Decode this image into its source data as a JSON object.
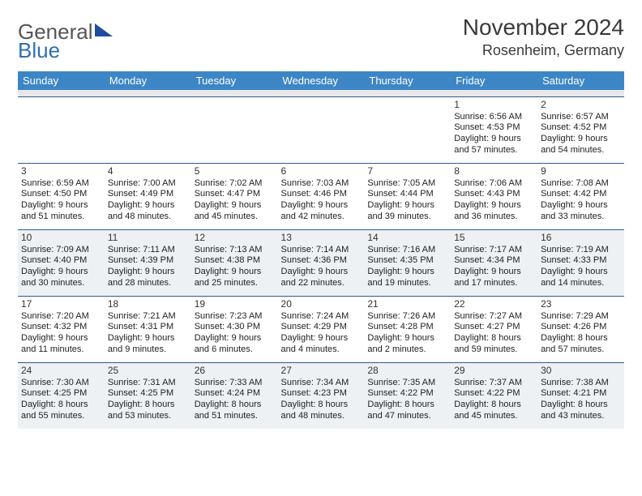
{
  "brand": {
    "part1": "General",
    "part2": "Blue"
  },
  "title": "November 2024",
  "location": "Rosenheim, Germany",
  "colors": {
    "header_bg": "#3d86c6",
    "header_text": "#ffffff",
    "row_rule": "#2b5b93",
    "alt_bg": "#eef1f3",
    "spacer_bg": "#e8e8ea",
    "text": "#222222",
    "title_text": "#3a3a3a"
  },
  "layout": {
    "columns": 7,
    "rows": 5,
    "cell_font_pt": 8,
    "title_font_pt": 21
  },
  "dow": [
    "Sunday",
    "Monday",
    "Tuesday",
    "Wednesday",
    "Thursday",
    "Friday",
    "Saturday"
  ],
  "weeks": [
    [
      null,
      null,
      null,
      null,
      null,
      {
        "n": "1",
        "sr": "6:56 AM",
        "ss": "4:53 PM",
        "dl": "9 hours and 57 minutes."
      },
      {
        "n": "2",
        "sr": "6:57 AM",
        "ss": "4:52 PM",
        "dl": "9 hours and 54 minutes."
      }
    ],
    [
      {
        "n": "3",
        "sr": "6:59 AM",
        "ss": "4:50 PM",
        "dl": "9 hours and 51 minutes."
      },
      {
        "n": "4",
        "sr": "7:00 AM",
        "ss": "4:49 PM",
        "dl": "9 hours and 48 minutes."
      },
      {
        "n": "5",
        "sr": "7:02 AM",
        "ss": "4:47 PM",
        "dl": "9 hours and 45 minutes."
      },
      {
        "n": "6",
        "sr": "7:03 AM",
        "ss": "4:46 PM",
        "dl": "9 hours and 42 minutes."
      },
      {
        "n": "7",
        "sr": "7:05 AM",
        "ss": "4:44 PM",
        "dl": "9 hours and 39 minutes."
      },
      {
        "n": "8",
        "sr": "7:06 AM",
        "ss": "4:43 PM",
        "dl": "9 hours and 36 minutes."
      },
      {
        "n": "9",
        "sr": "7:08 AM",
        "ss": "4:42 PM",
        "dl": "9 hours and 33 minutes."
      }
    ],
    [
      {
        "n": "10",
        "sr": "7:09 AM",
        "ss": "4:40 PM",
        "dl": "9 hours and 30 minutes."
      },
      {
        "n": "11",
        "sr": "7:11 AM",
        "ss": "4:39 PM",
        "dl": "9 hours and 28 minutes."
      },
      {
        "n": "12",
        "sr": "7:13 AM",
        "ss": "4:38 PM",
        "dl": "9 hours and 25 minutes."
      },
      {
        "n": "13",
        "sr": "7:14 AM",
        "ss": "4:36 PM",
        "dl": "9 hours and 22 minutes."
      },
      {
        "n": "14",
        "sr": "7:16 AM",
        "ss": "4:35 PM",
        "dl": "9 hours and 19 minutes."
      },
      {
        "n": "15",
        "sr": "7:17 AM",
        "ss": "4:34 PM",
        "dl": "9 hours and 17 minutes."
      },
      {
        "n": "16",
        "sr": "7:19 AM",
        "ss": "4:33 PM",
        "dl": "9 hours and 14 minutes."
      }
    ],
    [
      {
        "n": "17",
        "sr": "7:20 AM",
        "ss": "4:32 PM",
        "dl": "9 hours and 11 minutes."
      },
      {
        "n": "18",
        "sr": "7:21 AM",
        "ss": "4:31 PM",
        "dl": "9 hours and 9 minutes."
      },
      {
        "n": "19",
        "sr": "7:23 AM",
        "ss": "4:30 PM",
        "dl": "9 hours and 6 minutes."
      },
      {
        "n": "20",
        "sr": "7:24 AM",
        "ss": "4:29 PM",
        "dl": "9 hours and 4 minutes."
      },
      {
        "n": "21",
        "sr": "7:26 AM",
        "ss": "4:28 PM",
        "dl": "9 hours and 2 minutes."
      },
      {
        "n": "22",
        "sr": "7:27 AM",
        "ss": "4:27 PM",
        "dl": "8 hours and 59 minutes."
      },
      {
        "n": "23",
        "sr": "7:29 AM",
        "ss": "4:26 PM",
        "dl": "8 hours and 57 minutes."
      }
    ],
    [
      {
        "n": "24",
        "sr": "7:30 AM",
        "ss": "4:25 PM",
        "dl": "8 hours and 55 minutes."
      },
      {
        "n": "25",
        "sr": "7:31 AM",
        "ss": "4:25 PM",
        "dl": "8 hours and 53 minutes."
      },
      {
        "n": "26",
        "sr": "7:33 AM",
        "ss": "4:24 PM",
        "dl": "8 hours and 51 minutes."
      },
      {
        "n": "27",
        "sr": "7:34 AM",
        "ss": "4:23 PM",
        "dl": "8 hours and 48 minutes."
      },
      {
        "n": "28",
        "sr": "7:35 AM",
        "ss": "4:22 PM",
        "dl": "8 hours and 47 minutes."
      },
      {
        "n": "29",
        "sr": "7:37 AM",
        "ss": "4:22 PM",
        "dl": "8 hours and 45 minutes."
      },
      {
        "n": "30",
        "sr": "7:38 AM",
        "ss": "4:21 PM",
        "dl": "8 hours and 43 minutes."
      }
    ]
  ],
  "labels": {
    "sunrise": "Sunrise:",
    "sunset": "Sunset:",
    "daylight": "Daylight:"
  }
}
